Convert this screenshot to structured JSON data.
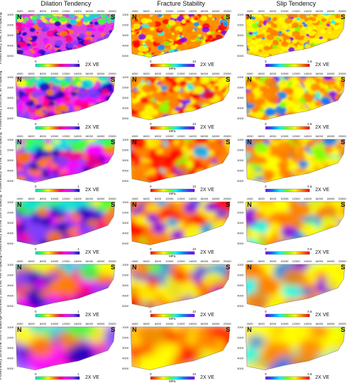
{
  "columns": [
    {
      "title": "Dilation Tendency",
      "cb_min": "0",
      "cb_max": "1",
      "cb_unit": "",
      "scheme": "dilation"
    },
    {
      "title": "Fracture Stability",
      "cb_min": "0",
      "cb_max": "10",
      "cb_unit": "MPa",
      "scheme": "fracture"
    },
    {
      "title": "Slip Tendency",
      "cb_min": "0",
      "cb_max": "0.6",
      "cb_unit": "",
      "scheme": "slip"
    }
  ],
  "rows": [
    {
      "label": "Picked Every Line, 25 m spacing",
      "smooth": 0
    },
    {
      "label": "Picked Every 2nd Line, 50 m spacing",
      "smooth": 1
    },
    {
      "label": "Picked Every 4th Line, 100 m spacing",
      "smooth": 2
    },
    {
      "label": "Picked Every 8th Line, 200 m spacing",
      "smooth": 3
    },
    {
      "label": "Picked Every 16th Line, 400 m spacing",
      "smooth": 4
    },
    {
      "label": "Picked Every 32nd Line, 800 m spacing",
      "smooth": 5
    }
  ],
  "north_label": "N",
  "south_label": "S",
  "ve_label": "2X VE",
  "x_ticks": [
    "4000",
    "6000",
    "8000",
    "10000",
    "12000",
    "14000",
    "16000",
    "18000",
    "20000"
  ],
  "y_ticks": [
    "1000",
    "2000",
    "3000",
    "4000",
    "5000"
  ],
  "colors": {
    "dilation": [
      "#00e0e0",
      "#40ff40",
      "#ffff00",
      "#ff8000",
      "#ff0080",
      "#ff00ff",
      "#8040ff",
      "#2000c0"
    ],
    "fracture": [
      "#ff0000",
      "#ff8000",
      "#ffff00",
      "#80ff00",
      "#00ffff",
      "#00a0ff",
      "#4040ff",
      "#8000ff"
    ],
    "slip": [
      "#8000ff",
      "#0080ff",
      "#00ffff",
      "#80ff00",
      "#ffff00",
      "#ff8000",
      "#ff0000"
    ]
  }
}
